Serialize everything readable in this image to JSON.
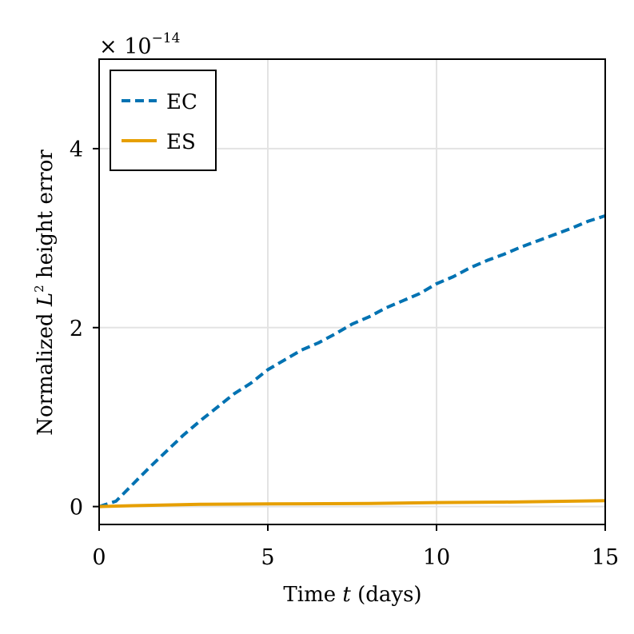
{
  "chart_data": {
    "type": "line",
    "xlabel_prefix": "Time ",
    "xlabel_var": "t",
    "xlabel_suffix": " (days)",
    "ylabel_prefix": "Normalized ",
    "ylabel_var": "L",
    "ylabel_sup": "2",
    "ylabel_suffix": " height error",
    "scale_multiplier": "× 10",
    "scale_exponent": "−14",
    "xlim": [
      0,
      15
    ],
    "ylim": [
      -0.2,
      5.0
    ],
    "xticks": [
      0,
      5,
      10,
      15
    ],
    "yticks": [
      0,
      2,
      4
    ],
    "xtick_labels": [
      "0",
      "5",
      "10",
      "15"
    ],
    "ytick_labels": [
      "0",
      "2",
      "4"
    ],
    "grid": true,
    "legend_position": "top-left",
    "series": [
      {
        "name": "EC",
        "style": "dashed",
        "color": "#0072b2",
        "x": [
          0,
          0.5,
          1,
          1.5,
          2,
          2.5,
          3,
          3.5,
          4,
          4.5,
          5,
          5.5,
          6,
          6.5,
          7,
          7.5,
          8,
          8.5,
          9,
          9.5,
          10,
          10.5,
          11,
          11.5,
          12,
          12.5,
          13,
          13.5,
          14,
          14.5,
          15
        ],
        "y": [
          0,
          0.06,
          0.25,
          0.44,
          0.62,
          0.8,
          0.96,
          1.11,
          1.26,
          1.38,
          1.53,
          1.64,
          1.75,
          1.83,
          1.93,
          2.04,
          2.12,
          2.22,
          2.3,
          2.38,
          2.49,
          2.57,
          2.67,
          2.75,
          2.82,
          2.9,
          2.97,
          3.04,
          3.11,
          3.19,
          3.25
        ]
      },
      {
        "name": "ES",
        "style": "solid",
        "color": "#e69f00",
        "x": [
          0,
          1,
          3,
          5,
          8,
          10,
          12,
          15
        ],
        "y": [
          0,
          0.01,
          0.025,
          0.03,
          0.035,
          0.045,
          0.05,
          0.065
        ]
      }
    ]
  }
}
